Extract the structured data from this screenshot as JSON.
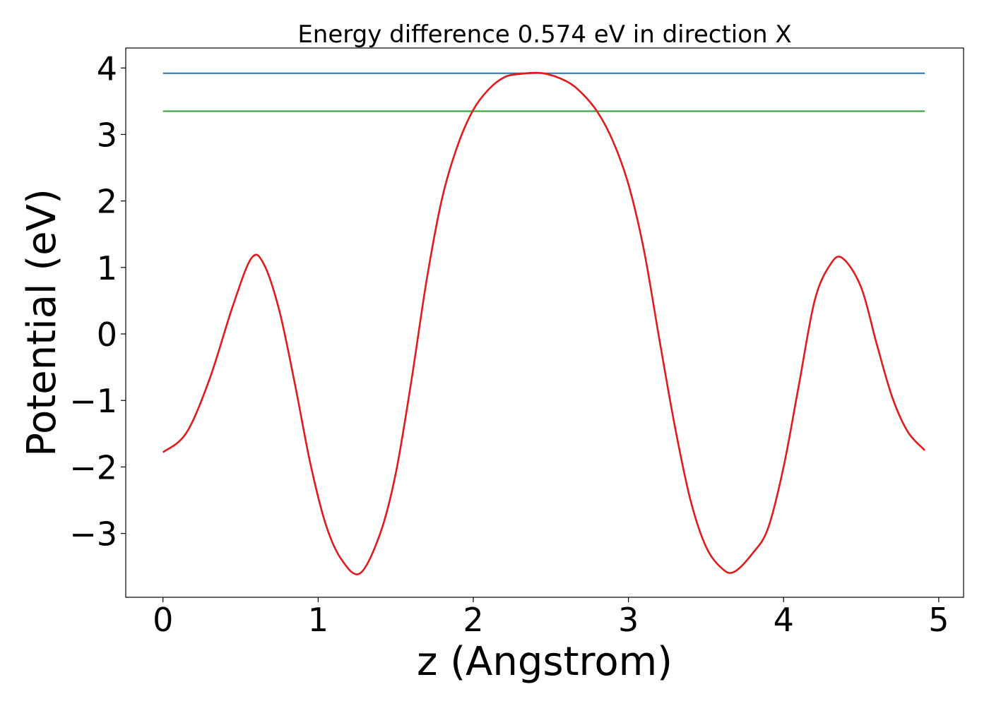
{
  "chart_data": {
    "type": "line",
    "title": "Energy difference 0.574 eV in direction X",
    "xlabel": "z (Angstrom)",
    "ylabel": "Potential (eV)",
    "xlim": [
      -0.24,
      5.16
    ],
    "ylim": [
      -3.96,
      4.3
    ],
    "xticks": [
      0,
      1,
      2,
      3,
      4,
      5
    ],
    "xtick_labels": [
      "0",
      "1",
      "2",
      "3",
      "4",
      "5"
    ],
    "yticks": [
      -3,
      -2,
      -1,
      0,
      1,
      2,
      3,
      4
    ],
    "ytick_labels": [
      "−3",
      "−2",
      "−1",
      "0",
      "1",
      "2",
      "3",
      "4"
    ],
    "grid": false,
    "legend": "none",
    "series": [
      {
        "color": "#1f77b4",
        "style": "horizontal",
        "x": [
          0.0,
          4.91
        ],
        "y": [
          3.92,
          3.92
        ]
      },
      {
        "color": "#2ca02c",
        "style": "horizontal",
        "x": [
          0.0,
          4.91
        ],
        "y": [
          3.35,
          3.35
        ]
      },
      {
        "color": "#e31a1c",
        "x": [
          0.0,
          0.15,
          0.3,
          0.45,
          0.57,
          0.65,
          0.75,
          0.85,
          0.95,
          1.05,
          1.15,
          1.27,
          1.4,
          1.5,
          1.6,
          1.7,
          1.8,
          1.9,
          2.0,
          2.1,
          2.2,
          2.3,
          2.45,
          2.6,
          2.7,
          2.8,
          2.9,
          3.0,
          3.1,
          3.2,
          3.3,
          3.4,
          3.5,
          3.6,
          3.68,
          3.8,
          3.9,
          4.0,
          4.1,
          4.2,
          4.3,
          4.38,
          4.5,
          4.6,
          4.7,
          4.8,
          4.91
        ],
        "y": [
          -1.78,
          -1.49,
          -0.68,
          0.42,
          1.14,
          1.05,
          0.35,
          -0.75,
          -1.95,
          -2.87,
          -3.39,
          -3.6,
          -3.0,
          -2.1,
          -0.72,
          0.82,
          2.05,
          2.84,
          3.37,
          3.68,
          3.86,
          3.91,
          3.92,
          3.8,
          3.62,
          3.34,
          2.9,
          2.25,
          1.26,
          -0.09,
          -1.4,
          -2.5,
          -3.2,
          -3.52,
          -3.58,
          -3.3,
          -2.92,
          -2.0,
          -0.75,
          0.5,
          1.04,
          1.14,
          0.7,
          -0.15,
          -0.95,
          -1.47,
          -1.75
        ]
      }
    ]
  }
}
